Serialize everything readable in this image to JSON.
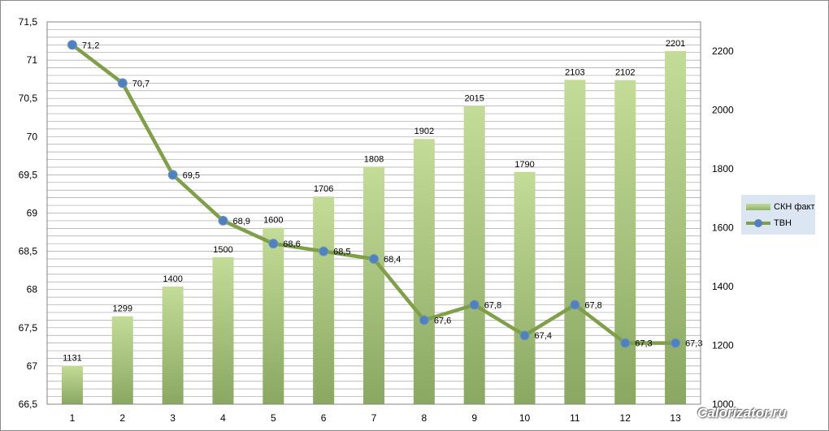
{
  "chart_data": {
    "type": "bar",
    "categories": [
      "1",
      "2",
      "3",
      "4",
      "5",
      "6",
      "7",
      "8",
      "9",
      "10",
      "11",
      "12",
      "13"
    ],
    "series": [
      {
        "name": "СКН факт",
        "type": "bar",
        "axis": "right",
        "values": [
          1131,
          1299,
          1400,
          1500,
          1600,
          1706,
          1808,
          1902,
          2015,
          1790,
          2103,
          2102,
          2201
        ],
        "labels": [
          "1131",
          "1299",
          "1400",
          "1500",
          "1600",
          "1706",
          "1808",
          "1902",
          "2015",
          "1790",
          "2103",
          "2102",
          "2201"
        ],
        "color": "#a9c57f"
      },
      {
        "name": "ТВН",
        "type": "line",
        "axis": "left",
        "values": [
          71.2,
          70.7,
          69.5,
          68.9,
          68.6,
          68.5,
          68.4,
          67.6,
          67.8,
          67.4,
          67.8,
          67.3,
          67.3
        ],
        "labels": [
          "71,2",
          "70,7",
          "69,5",
          "68,9",
          "68,6",
          "68,5",
          "68,4",
          "67,6",
          "67,8",
          "67,4",
          "67,8",
          "67,3",
          "67,3"
        ],
        "color": "#7fa048",
        "marker_color": "#4f81bd"
      }
    ],
    "y_left": {
      "min": 66.5,
      "max": 71.5,
      "ticks": [
        "66,5",
        "67",
        "67,5",
        "68",
        "68,5",
        "69",
        "69,5",
        "70",
        "70,5",
        "71",
        "71,5"
      ]
    },
    "y_right": {
      "min": 1000,
      "max": 2300,
      "ticks": [
        "1000",
        "1200",
        "1400",
        "1600",
        "1800",
        "2000",
        "2200"
      ]
    },
    "grid": true,
    "legend_position": "right"
  },
  "watermark": "Calorizator.ru",
  "colors": {
    "grid": "#a6a6a6",
    "legend_bg": "#dce6f2"
  }
}
